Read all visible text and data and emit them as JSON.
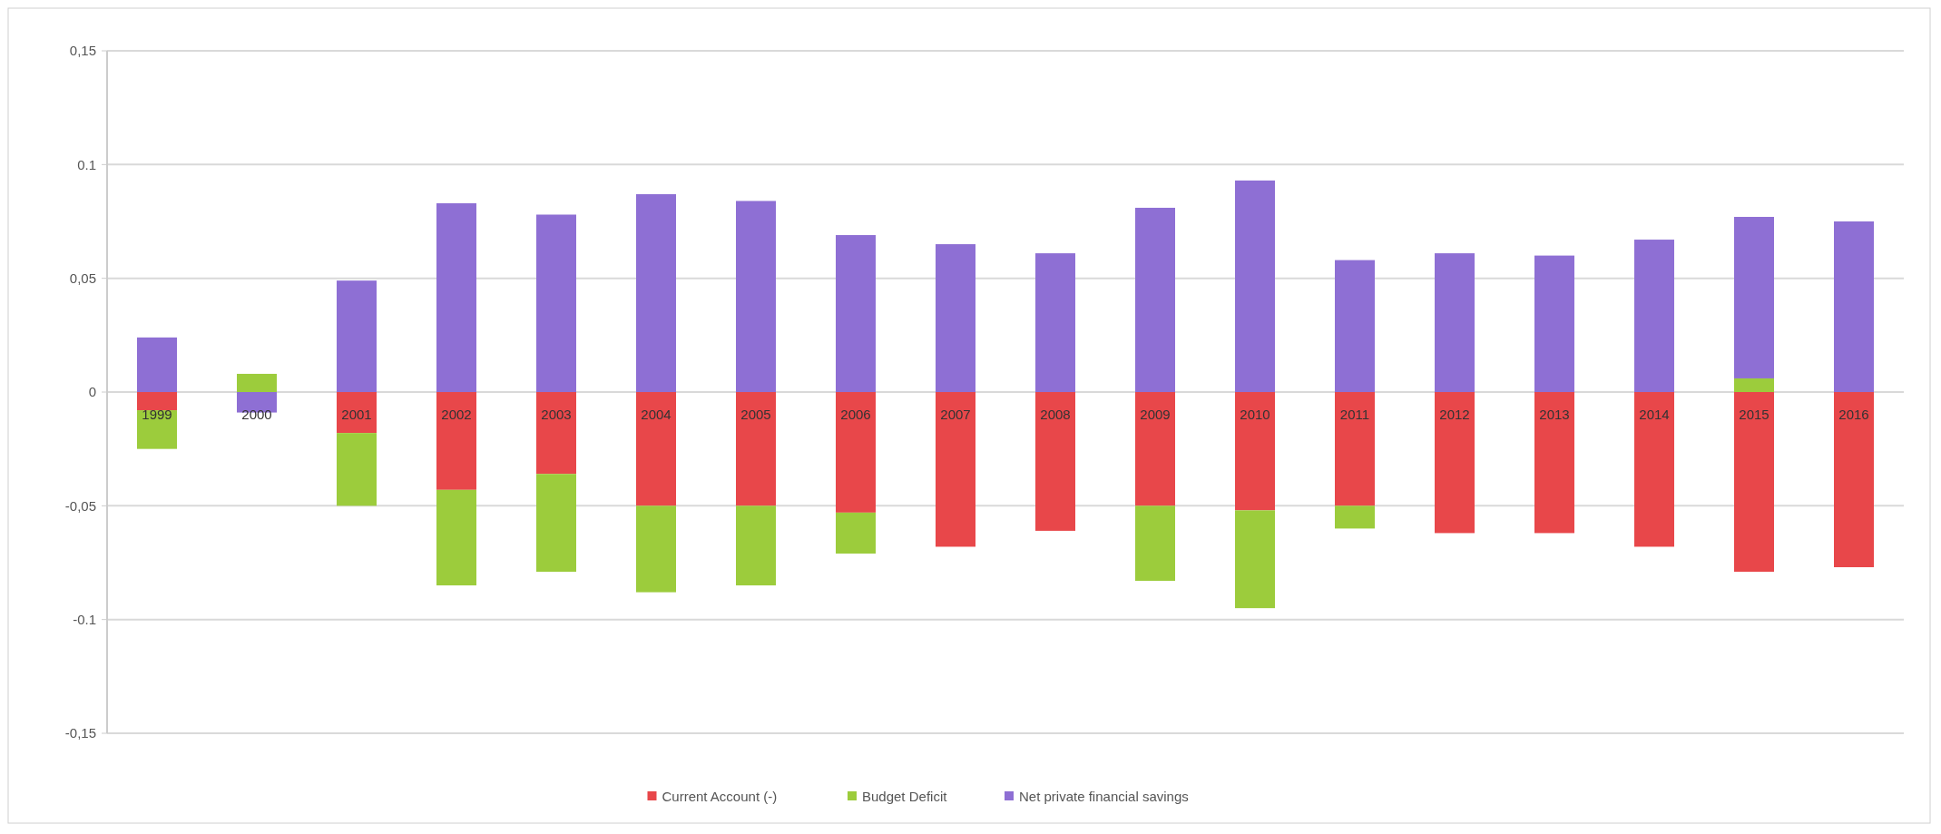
{
  "chart_data": {
    "type": "bar",
    "stacked": true,
    "categories": [
      "1999",
      "2000",
      "2001",
      "2002",
      "2003",
      "2004",
      "2005",
      "2006",
      "2007",
      "2008",
      "2009",
      "2010",
      "2011",
      "2012",
      "2013",
      "2014",
      "2015",
      "2016"
    ],
    "series": [
      {
        "name": "Current Account (-)",
        "color": "#e8474a",
        "values": [
          -0.008,
          0,
          -0.018,
          -0.043,
          -0.036,
          -0.05,
          -0.05,
          -0.053,
          -0.068,
          -0.061,
          -0.05,
          -0.052,
          -0.05,
          -0.062,
          -0.062,
          -0.068,
          -0.079,
          -0.077
        ]
      },
      {
        "name": "Budget Deficit",
        "color": "#9ccc3c",
        "values": [
          -0.017,
          0.008,
          -0.032,
          -0.042,
          -0.043,
          -0.038,
          -0.035,
          -0.018,
          0,
          0,
          -0.033,
          -0.043,
          -0.01,
          0,
          0,
          0,
          0.006,
          0
        ]
      },
      {
        "name": "Net private financial savings",
        "color": "#8e6fd4",
        "values": [
          0.024,
          -0.009,
          0.049,
          0.083,
          0.078,
          0.087,
          0.084,
          0.069,
          0.065,
          0.061,
          0.081,
          0.093,
          0.058,
          0.061,
          0.06,
          0.067,
          0.071,
          0.075
        ]
      }
    ],
    "ylim": [
      -0.15,
      0.15
    ],
    "yticks": [
      {
        "value": -0.15,
        "label": "-0,15"
      },
      {
        "value": -0.1,
        "label": "-0.1"
      },
      {
        "value": -0.05,
        "label": "-0,05"
      },
      0,
      {
        "value": 0.05,
        "label": "0,05"
      },
      {
        "value": 0.1,
        "label": "0.1"
      },
      {
        "value": 0.15,
        "label": "0,15"
      }
    ],
    "grid": "y",
    "legend": "bottom"
  }
}
